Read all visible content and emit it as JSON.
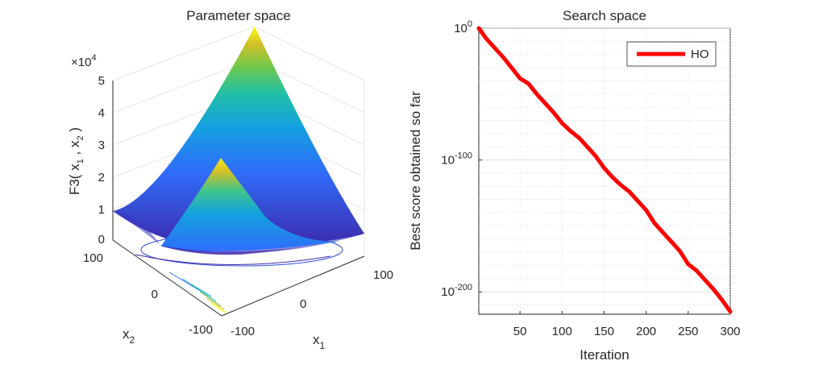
{
  "chart_data": [
    {
      "type": "surface",
      "title": "Parameter space",
      "xlabel": "x",
      "xlabel_sub": "1",
      "ylabel": "x",
      "ylabel_sub": "2",
      "zlabel": {
        "f": "F3(",
        "x": "x",
        "s1": "1",
        "c": ",",
        "s2": "2",
        "close": ")"
      },
      "z_exponent": {
        "base": "×10",
        "exp": "4"
      },
      "x_ticks": [
        "-100",
        "0",
        "100"
      ],
      "y_ticks": [
        "-100",
        "0",
        "100"
      ],
      "z_ticks": [
        "0",
        "1",
        "2",
        "3",
        "4",
        "5"
      ],
      "xlim": [
        -100,
        100
      ],
      "ylim": [
        -100,
        100
      ],
      "zlim": [
        0,
        50000
      ],
      "colormap": [
        "#3e26a8",
        "#2f6dfa",
        "#13a1e0",
        "#21bfa6",
        "#6fc94c",
        "#d1bf27",
        "#f9fb0e"
      ],
      "contour_levels": 8
    },
    {
      "type": "line",
      "title": "Search space",
      "xlabel": "Iteration",
      "ylabel": "Best score obtained so far",
      "yscale": "log",
      "xlim": [
        1,
        300
      ],
      "ylim_log10": [
        -217,
        0
      ],
      "x_ticks": [
        "50",
        "100",
        "150",
        "200",
        "250",
        "300"
      ],
      "y_ticks": [
        {
          "base": "10",
          "exp": "0"
        },
        {
          "base": "10",
          "exp": "-100"
        },
        {
          "base": "10",
          "exp": "-200"
        }
      ],
      "grid": true,
      "legend_position": "top-right",
      "series": [
        {
          "name": "HO",
          "color": "#ff0000",
          "x": [
            1,
            10,
            20,
            30,
            40,
            50,
            60,
            70,
            80,
            90,
            100,
            110,
            120,
            130,
            140,
            150,
            160,
            170,
            180,
            190,
            200,
            210,
            220,
            230,
            240,
            250,
            260,
            270,
            280,
            290,
            300
          ],
          "log10_y": [
            0,
            -8,
            -15,
            -22,
            -30,
            -38,
            -42,
            -50,
            -57,
            -64,
            -72,
            -78,
            -83,
            -90,
            -97,
            -106,
            -113,
            -119,
            -124,
            -131,
            -138,
            -148,
            -155,
            -162,
            -169,
            -179,
            -184,
            -191,
            -198,
            -206,
            -215
          ]
        }
      ]
    }
  ]
}
